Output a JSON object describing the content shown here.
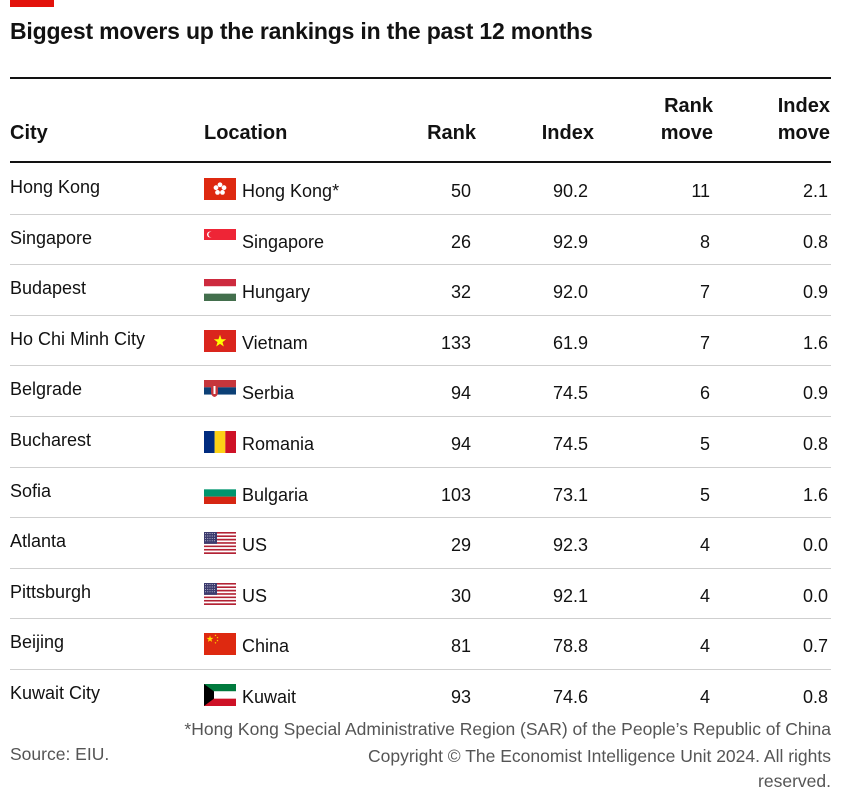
{
  "title": "Biggest movers up the rankings in the past 12 months",
  "columns": {
    "city": "City",
    "location": "Location",
    "rank": "Rank",
    "index": "Index",
    "rank_move_1": "Rank",
    "rank_move_2": "move",
    "index_move_1": "Index",
    "index_move_2": "move"
  },
  "chart_data": {
    "type": "table",
    "title": "Biggest movers up the rankings in the past 12 months",
    "columns": [
      "City",
      "Location",
      "Rank",
      "Index",
      "Rank move",
      "Index move"
    ],
    "rows": [
      {
        "city": "Hong Kong",
        "location": "Hong Kong*",
        "flag": "hong-kong-flag",
        "rank": "50",
        "index": "90.2",
        "rank_move": "11",
        "index_move": "2.1"
      },
      {
        "city": "Singapore",
        "location": "Singapore",
        "flag": "singapore-flag",
        "rank": "26",
        "index": "92.9",
        "rank_move": "8",
        "index_move": "0.8"
      },
      {
        "city": "Budapest",
        "location": "Hungary",
        "flag": "hungary-flag",
        "rank": "32",
        "index": "92.0",
        "rank_move": "7",
        "index_move": "0.9"
      },
      {
        "city": "Ho Chi Minh City",
        "location": "Vietnam",
        "flag": "vietnam-flag",
        "rank": "133",
        "index": "61.9",
        "rank_move": "7",
        "index_move": "1.6"
      },
      {
        "city": "Belgrade",
        "location": "Serbia",
        "flag": "serbia-flag",
        "rank": "94",
        "index": "74.5",
        "rank_move": "6",
        "index_move": "0.9"
      },
      {
        "city": "Bucharest",
        "location": "Romania",
        "flag": "romania-flag",
        "rank": "94",
        "index": "74.5",
        "rank_move": "5",
        "index_move": "0.8"
      },
      {
        "city": "Sofia",
        "location": "Bulgaria",
        "flag": "bulgaria-flag",
        "rank": "103",
        "index": "73.1",
        "rank_move": "5",
        "index_move": "1.6"
      },
      {
        "city": "Atlanta",
        "location": "US",
        "flag": "us-flag",
        "rank": "29",
        "index": "92.3",
        "rank_move": "4",
        "index_move": "0.0"
      },
      {
        "city": "Pittsburgh",
        "location": "US",
        "flag": "us-flag",
        "rank": "30",
        "index": "92.1",
        "rank_move": "4",
        "index_move": "0.0"
      },
      {
        "city": "Beijing",
        "location": "China",
        "flag": "china-flag",
        "rank": "81",
        "index": "78.8",
        "rank_move": "4",
        "index_move": "0.7"
      },
      {
        "city": "Kuwait City",
        "location": "Kuwait",
        "flag": "kuwait-flag",
        "rank": "93",
        "index": "74.6",
        "rank_move": "4",
        "index_move": "0.8"
      }
    ]
  },
  "footnote": "*Hong Kong Special Administrative Region (SAR) of the People’s Republic of China",
  "source": "Source: EIU.",
  "copyright": "Copyright © The Economist Intelligence Unit 2024. All rights reserved.",
  "colors": {
    "accent": "#e3120b",
    "rule": "#121212",
    "row_divider": "#cfcfcf",
    "muted_text": "#555555"
  }
}
